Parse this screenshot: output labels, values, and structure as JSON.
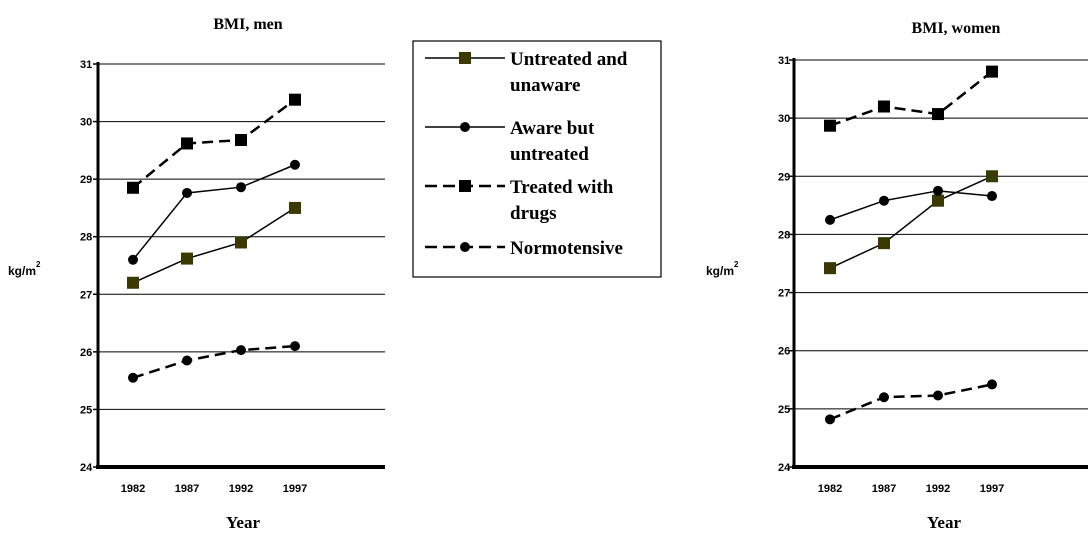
{
  "chart_data": [
    {
      "type": "line",
      "title": "BMI, men",
      "xlabel": "Year",
      "ylabel": "kg/m",
      "ylabel_superscript": "2",
      "categories": [
        "1982",
        "1987",
        "1992",
        "1997"
      ],
      "ylim": [
        24,
        31
      ],
      "yticks": [
        "24",
        "25",
        "26",
        "27",
        "28",
        "29",
        "30",
        "31"
      ],
      "grid": true,
      "series": [
        {
          "name": "Untreated and unaware",
          "values": [
            27.2,
            27.62,
            27.9,
            28.5
          ],
          "line": "solid",
          "marker": "square",
          "marker_color": "#3a3a00"
        },
        {
          "name": "Aware but untreated",
          "values": [
            27.6,
            28.76,
            28.86,
            29.25
          ],
          "line": "solid",
          "marker": "circle",
          "marker_color": "#000000"
        },
        {
          "name": "Treated with drugs",
          "values": [
            28.85,
            29.62,
            29.68,
            30.38
          ],
          "line": "dashed",
          "marker": "square",
          "marker_color": "#000000"
        },
        {
          "name": "Normotensive",
          "values": [
            25.55,
            25.85,
            26.03,
            26.1
          ],
          "line": "dashed",
          "marker": "circle",
          "marker_color": "#000000"
        }
      ]
    },
    {
      "type": "line",
      "title": "BMI, women",
      "xlabel": "Year",
      "ylabel": "kg/m",
      "ylabel_superscript": "2",
      "categories": [
        "1982",
        "1987",
        "1992",
        "1997"
      ],
      "ylim": [
        24,
        31
      ],
      "yticks": [
        "24",
        "25",
        "26",
        "27",
        "28",
        "29",
        "30",
        "31"
      ],
      "grid": true,
      "series": [
        {
          "name": "Untreated and unaware",
          "values": [
            27.42,
            27.85,
            28.58,
            29.0
          ],
          "line": "solid",
          "marker": "square",
          "marker_color": "#3a3a00"
        },
        {
          "name": "Aware but untreated",
          "values": [
            28.25,
            28.58,
            28.75,
            28.66
          ],
          "line": "solid",
          "marker": "circle",
          "marker_color": "#000000"
        },
        {
          "name": "Treated with drugs",
          "values": [
            29.87,
            30.2,
            30.07,
            30.8
          ],
          "line": "dashed",
          "marker": "square",
          "marker_color": "#000000"
        },
        {
          "name": "Normotensive",
          "values": [
            24.82,
            25.2,
            25.23,
            25.42
          ],
          "line": "dashed",
          "marker": "circle",
          "marker_color": "#000000"
        }
      ]
    }
  ],
  "legend": {
    "placement": "center",
    "items": [
      {
        "lines": [
          "Untreated and",
          "unaware"
        ],
        "line": "solid",
        "marker": "square",
        "marker_color": "#3a3a00"
      },
      {
        "lines": [
          "Aware but",
          "untreated"
        ],
        "line": "solid",
        "marker": "circle",
        "marker_color": "#000000"
      },
      {
        "lines": [
          "Treated with",
          "drugs"
        ],
        "line": "dashed",
        "marker": "square",
        "marker_color": "#000000"
      },
      {
        "lines": [
          "Normotensive"
        ],
        "line": "dashed",
        "marker": "circle",
        "marker_color": "#000000"
      }
    ]
  }
}
